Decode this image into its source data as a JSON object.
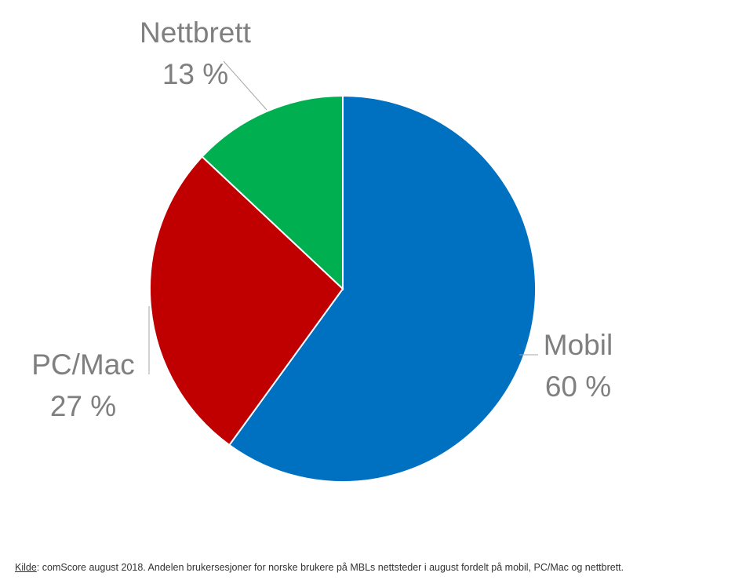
{
  "chart_data": {
    "type": "pie",
    "slices": [
      {
        "label": "Mobil",
        "value": 60,
        "value_label": "60 %",
        "color": "#0070c0"
      },
      {
        "label": "PC/Mac",
        "value": 27,
        "value_label": "27 %",
        "color": "#c00000"
      },
      {
        "label": "Nettbrett",
        "value": 13,
        "value_label": "13 %",
        "color": "#00b050"
      }
    ],
    "start_angle": "12 o'clock",
    "direction": "clockwise",
    "label_color": "#7f7f7f",
    "leader_line_color": "#a6a6a6"
  },
  "source": {
    "key": "Kilde",
    "text": ":  comScore august 2018. Andelen brukersesjoner for norske brukere på MBLs nettsteder i august fordelt på mobil, PC/Mac og nettbrett."
  }
}
